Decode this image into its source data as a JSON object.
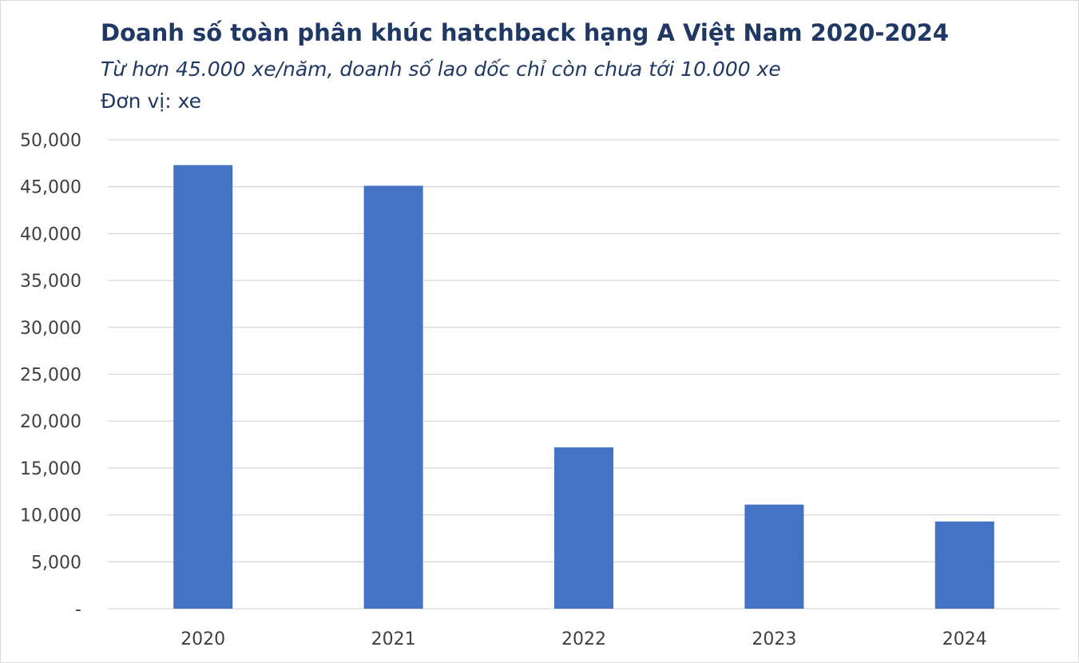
{
  "chart_data": {
    "type": "bar",
    "title": "Doanh số toàn phân khúc hatchback hạng A Việt Nam 2020-2024",
    "subtitle": "Từ hơn 45.000 xe/năm, doanh số lao dốc chỉ còn chưa tới 10.000 xe",
    "unit_label": "Đơn vị: xe",
    "categories": [
      "2020",
      "2021",
      "2022",
      "2023",
      "2024"
    ],
    "values": [
      47300,
      45100,
      17200,
      11100,
      9300
    ],
    "ylim": [
      0,
      50000
    ],
    "yticks": [
      0,
      5000,
      10000,
      15000,
      20000,
      25000,
      30000,
      35000,
      40000,
      45000,
      50000
    ],
    "ytick_labels": [
      "-",
      "5,000",
      "10,000",
      "15,000",
      "20,000",
      "25,000",
      "30,000",
      "35,000",
      "40,000",
      "45,000",
      "50,000"
    ],
    "grid": true,
    "legend": "none",
    "colors": {
      "bar": "#4472c4",
      "grid": "#d9d9d9",
      "title": "#1f3864",
      "ticks": "#404040"
    }
  }
}
